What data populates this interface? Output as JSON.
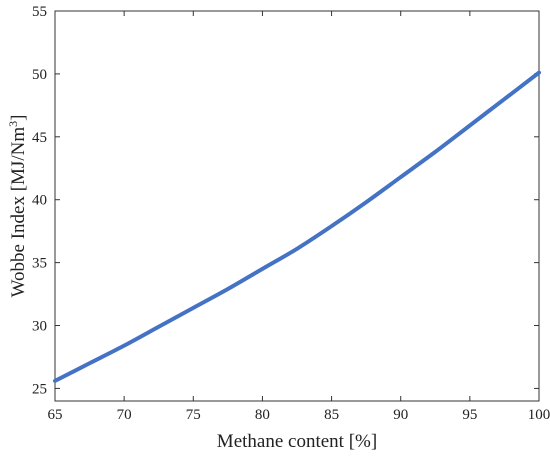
{
  "chart_data": {
    "type": "line",
    "title": "",
    "xlabel": "Methane content [%]",
    "ylabel_main": "Wobbe Index [MJ/Nm",
    "ylabel_sup": "3",
    "ylabel_close": "]",
    "xlim": [
      65,
      100
    ],
    "ylim": [
      24,
      55
    ],
    "xticks": [
      65,
      70,
      75,
      80,
      85,
      90,
      95,
      100
    ],
    "yticks": [
      25,
      30,
      35,
      40,
      45,
      50,
      55
    ],
    "grid": false,
    "series": [
      {
        "color": "#4472c4",
        "x": [
          65,
          67.5,
          70,
          72.5,
          75,
          77.5,
          80,
          82.5,
          85,
          87.5,
          90,
          92.5,
          95,
          97.5,
          100
        ],
        "y": [
          25.6,
          27.0,
          28.4,
          29.9,
          31.4,
          32.9,
          34.5,
          36.1,
          37.9,
          39.8,
          41.8,
          43.8,
          45.9,
          48.0,
          50.1
        ]
      }
    ]
  }
}
